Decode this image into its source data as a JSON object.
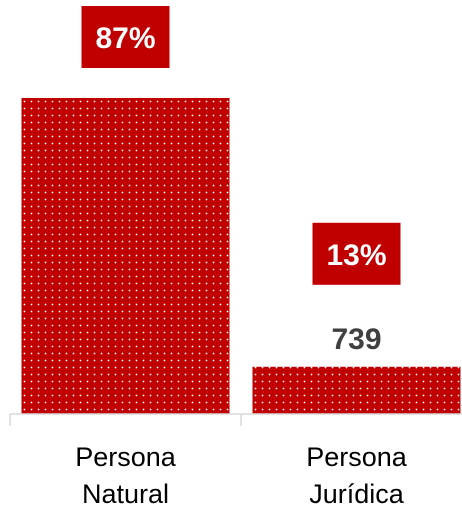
{
  "chart_data": {
    "type": "bar",
    "title": "",
    "xlabel": "",
    "ylabel": "",
    "categories": [
      "Persona\nNatural",
      "Persona\nJurídica"
    ],
    "values": [
      4946,
      739
    ],
    "percent_labels": [
      "87%",
      "13%"
    ],
    "value_labels": [
      null,
      "739"
    ],
    "ylim": [
      0,
      4946
    ],
    "grid": false,
    "legend": "none",
    "colors": {
      "bar": "#c00000",
      "bar_pattern_dot": "#ffffff",
      "percent_box": "#c00000",
      "percent_text": "#ffffff",
      "value_text": "#404040",
      "axis": "#d9d9d9"
    }
  }
}
